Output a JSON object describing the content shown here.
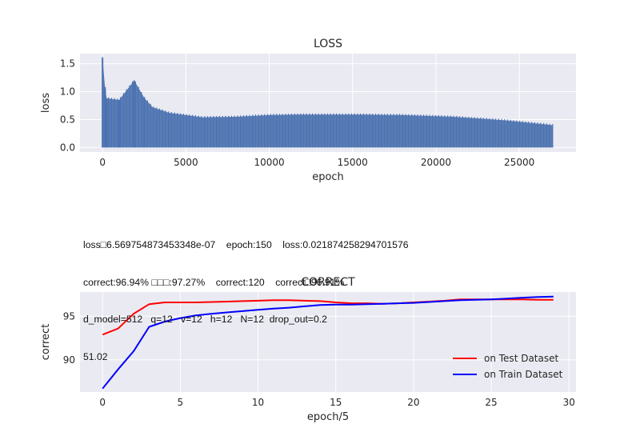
{
  "info_lines": [
    "loss□6.569754873453348e-07    epoch:150    loss:0.021874258294701576",
    "correct:96.94% □□□:97.27%    correct:120    correct□96.91%",
    "d_model=512   q=12   v=12   h=12   N=12  drop_out=0.2",
    "51.02"
  ],
  "chart_data": [
    {
      "type": "line",
      "title": "LOSS",
      "xlabel": "epoch",
      "ylabel": "loss",
      "xlim": [
        -1350,
        28400
      ],
      "ylim": [
        -0.08,
        1.68
      ],
      "xticks": [
        0,
        5000,
        10000,
        15000,
        20000,
        25000
      ],
      "yticks": [
        0.0,
        0.5,
        1.0,
        1.5
      ],
      "xtick_labels": [
        "0",
        "5000",
        "10000",
        "15000",
        "20000",
        "25000"
      ],
      "ytick_labels": [
        "0.0",
        "0.5",
        "1.0",
        "1.5"
      ],
      "grid": true,
      "color": "#4c72b0",
      "series": [
        {
          "x_max": 27000,
          "min_value": 0.0,
          "peaks": [
            {
              "x": 0,
              "y": 1.6
            },
            {
              "x": 150,
              "y": 1.08
            },
            {
              "x": 250,
              "y": 0.88
            },
            {
              "x": 1000,
              "y": 0.85
            },
            {
              "x": 1900,
              "y": 1.2
            },
            {
              "x": 2500,
              "y": 0.89
            },
            {
              "x": 3000,
              "y": 0.72
            },
            {
              "x": 4000,
              "y": 0.62
            },
            {
              "x": 6000,
              "y": 0.54
            },
            {
              "x": 8000,
              "y": 0.55
            },
            {
              "x": 10000,
              "y": 0.58
            },
            {
              "x": 12000,
              "y": 0.59
            },
            {
              "x": 15000,
              "y": 0.59
            },
            {
              "x": 18000,
              "y": 0.58
            },
            {
              "x": 21000,
              "y": 0.55
            },
            {
              "x": 24000,
              "y": 0.49
            },
            {
              "x": 27000,
              "y": 0.4
            }
          ]
        }
      ]
    },
    {
      "type": "line",
      "title": "CORRECT",
      "xlabel": "epoch/5",
      "ylabel": "correct",
      "xlim": [
        -1.45,
        30.45
      ],
      "ylim": [
        86.3,
        97.8
      ],
      "xticks": [
        0,
        5,
        10,
        15,
        20,
        25,
        30
      ],
      "yticks": [
        90,
        95
      ],
      "xtick_labels": [
        "0",
        "5",
        "10",
        "15",
        "20",
        "25",
        "30"
      ],
      "ytick_labels": [
        "90",
        "95"
      ],
      "grid": true,
      "legend_position": "lower-right",
      "x": [
        0,
        1,
        2,
        3,
        4,
        5,
        6,
        7,
        8,
        9,
        10,
        11,
        12,
        13,
        14,
        15,
        16,
        17,
        18,
        19,
        20,
        21,
        22,
        23,
        24,
        25,
        26,
        27,
        28,
        29
      ],
      "series": [
        {
          "name": "on Test Dataset",
          "color": "#ff0000",
          "values": [
            92.9,
            93.6,
            95.3,
            96.4,
            96.6,
            96.6,
            96.6,
            96.65,
            96.7,
            96.75,
            96.8,
            96.85,
            96.85,
            96.8,
            96.75,
            96.6,
            96.5,
            96.5,
            96.45,
            96.5,
            96.6,
            96.7,
            96.8,
            96.95,
            96.95,
            96.95,
            96.95,
            96.95,
            96.9,
            96.91
          ]
        },
        {
          "name": "on Train Dataset",
          "color": "#0000ff",
          "values": [
            86.7,
            88.9,
            91.0,
            93.8,
            94.4,
            94.8,
            95.1,
            95.3,
            95.45,
            95.6,
            95.75,
            95.9,
            96.0,
            96.15,
            96.3,
            96.35,
            96.35,
            96.4,
            96.45,
            96.5,
            96.55,
            96.65,
            96.75,
            96.85,
            96.9,
            96.95,
            97.05,
            97.15,
            97.22,
            97.27
          ]
        }
      ]
    }
  ]
}
